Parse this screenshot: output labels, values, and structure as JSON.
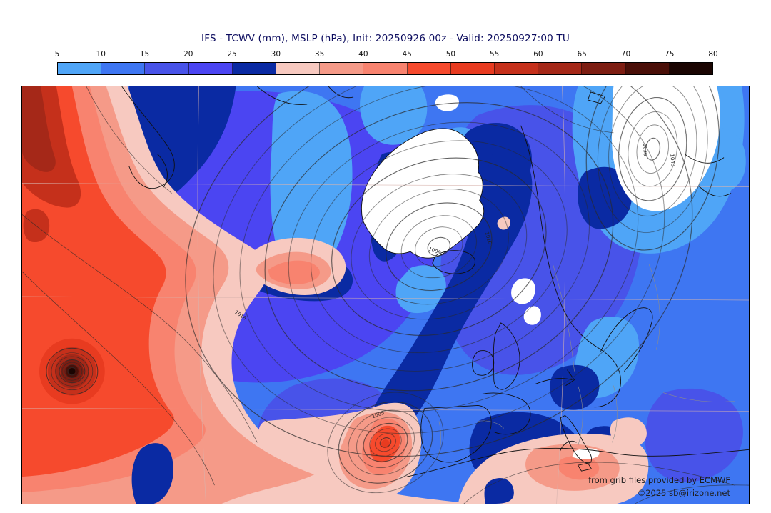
{
  "title": "IFS - TCWV (mm), MSLP (hPa), Init: 20250926 00z - Valid: 20250927:00 TU",
  "colorbar": {
    "ticks": [
      "5",
      "10",
      "15",
      "20",
      "25",
      "30",
      "35",
      "40",
      "45",
      "50",
      "55",
      "60",
      "65",
      "70",
      "75",
      "80"
    ],
    "segment_colors": [
      "#4FA5F7",
      "#3E76F2",
      "#4853E9",
      "#4B45F2",
      "#0A2AA3",
      "#F7C9C0",
      "#F59A88",
      "#F8836F",
      "#F64A2D",
      "#E83B20",
      "#C5301B",
      "#A52818",
      "#7D1D12",
      "#4A0F08",
      "#1A0502"
    ],
    "below_min_color": "#FFFFFF"
  },
  "map": {
    "isobar_labels": [
      "1016",
      "1008",
      "1016",
      "1036",
      "1040",
      "1005"
    ],
    "attribution_line1": "from grib files provided by ECMWF",
    "attribution_line2": "©2025 sb@irizone.net"
  },
  "colors": {
    "title_text": "#0b0b5e",
    "map_border": "#000000",
    "coastline": "#101010",
    "country_border": "#8c8c8c",
    "isobar": "#2b2b2b",
    "graticule": "#d8b4ae",
    "background": "#ffffff"
  }
}
